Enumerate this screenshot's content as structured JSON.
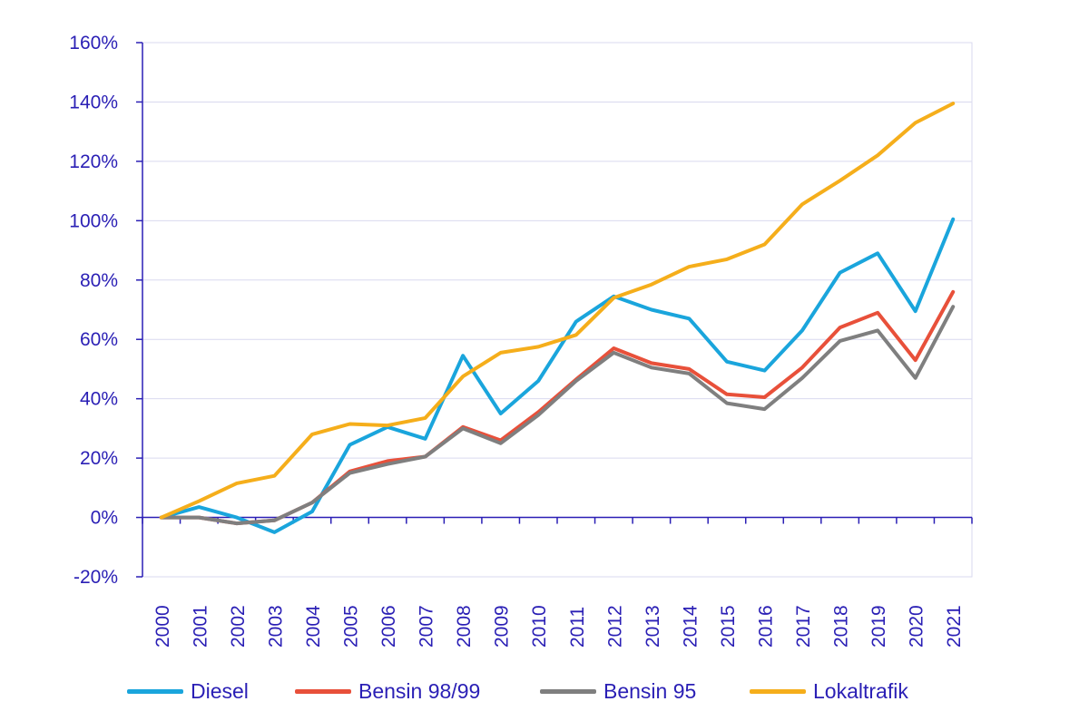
{
  "chart_data": {
    "type": "line",
    "title": "",
    "xlabel": "",
    "ylabel": "",
    "categories": [
      "2000",
      "2001",
      "2002",
      "2003",
      "2004",
      "2005",
      "2006",
      "2007",
      "2008",
      "2009",
      "2010",
      "2011",
      "2012",
      "2013",
      "2014",
      "2015",
      "2016",
      "2017",
      "2018",
      "2019",
      "2020",
      "2021"
    ],
    "ylim": [
      -20,
      160
    ],
    "yticks": [
      -20,
      0,
      20,
      40,
      60,
      80,
      100,
      120,
      140,
      160
    ],
    "ytick_labels": [
      "-20%",
      "0%",
      "20%",
      "40%",
      "60%",
      "80%",
      "100%",
      "120%",
      "140%",
      "160%"
    ],
    "grid": "horizontal",
    "legend_position": "bottom",
    "series": [
      {
        "name": "Diesel",
        "color": "#1aa5dc",
        "values": [
          0,
          3.5,
          0,
          -5,
          2,
          24.5,
          30.5,
          26.5,
          54.5,
          35,
          46,
          66,
          74.5,
          70,
          67,
          52.5,
          49.5,
          63,
          82.5,
          89,
          69.5,
          100.5
        ]
      },
      {
        "name": "Bensin 98/99",
        "color": "#e8503a",
        "values": [
          0,
          0,
          -2,
          -1,
          5,
          15.5,
          19,
          20.5,
          30.5,
          26,
          35.5,
          46.5,
          57,
          52,
          50,
          41.5,
          40.5,
          50.5,
          64,
          69,
          53,
          76
        ]
      },
      {
        "name": "Bensin 95",
        "color": "#7f7f7f",
        "values": [
          0,
          0,
          -2,
          -1,
          5,
          15,
          18,
          20.5,
          30,
          25,
          34.5,
          46,
          55.5,
          50.5,
          48.5,
          38.5,
          36.5,
          47,
          59.5,
          63,
          47,
          71
        ]
      },
      {
        "name": "Lokaltrafik",
        "color": "#f5ae1b",
        "values": [
          0,
          5.5,
          11.5,
          14,
          28,
          31.5,
          31,
          33.5,
          47.5,
          55.5,
          57.5,
          61.5,
          74,
          78.5,
          84.5,
          87,
          92,
          105.5,
          113.5,
          122,
          133,
          139.5
        ]
      }
    ]
  }
}
